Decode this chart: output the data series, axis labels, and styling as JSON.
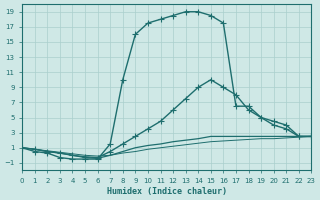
{
  "xlabel": "Humidex (Indice chaleur)",
  "xlim": [
    0,
    23
  ],
  "ylim": [
    -2,
    20
  ],
  "xticks": [
    0,
    1,
    2,
    3,
    4,
    5,
    6,
    7,
    8,
    9,
    10,
    11,
    12,
    13,
    14,
    15,
    16,
    17,
    18,
    19,
    20,
    21,
    22,
    23
  ],
  "yticks": [
    -1,
    1,
    3,
    5,
    7,
    9,
    11,
    13,
    15,
    17,
    19
  ],
  "bg_color": "#cfe8e6",
  "grid_color": "#aacfcd",
  "line_color": "#1e6e6e",
  "curve1_x": [
    0,
    1,
    2,
    3,
    4,
    5,
    6,
    7,
    8,
    9,
    10,
    11,
    12,
    13,
    14,
    15,
    16,
    17,
    18,
    19,
    20,
    21,
    22,
    23
  ],
  "curve1_y": [
    1,
    0.5,
    0.3,
    -0.3,
    -0.5,
    -0.5,
    -0.5,
    1.5,
    10,
    16,
    17.5,
    18,
    18.5,
    19,
    19,
    18.5,
    17.5,
    6.5,
    6.5,
    5,
    4.5,
    4,
    2.5,
    2.5
  ],
  "curve2_x": [
    0,
    1,
    2,
    3,
    4,
    5,
    6,
    7,
    8,
    9,
    10,
    11,
    12,
    13,
    14,
    15,
    16,
    17,
    18,
    19,
    20,
    21,
    22,
    23
  ],
  "curve2_y": [
    1,
    0.8,
    0.5,
    0.3,
    0.0,
    -0.2,
    -0.3,
    0.5,
    1.5,
    2.5,
    3.5,
    4.5,
    6,
    7.5,
    9,
    10,
    9,
    8,
    6,
    5,
    4,
    3.5,
    2.5,
    2.5
  ],
  "curve3_x": [
    0,
    1,
    2,
    3,
    4,
    5,
    6,
    7,
    8,
    9,
    10,
    11,
    12,
    13,
    14,
    15,
    16,
    17,
    18,
    19,
    20,
    21,
    22,
    23
  ],
  "curve3_y": [
    1,
    0.8,
    0.5,
    0.3,
    0.0,
    -0.3,
    -0.4,
    0.0,
    0.5,
    1.0,
    1.3,
    1.5,
    1.8,
    2.0,
    2.2,
    2.5,
    2.5,
    2.5,
    2.5,
    2.5,
    2.5,
    2.5,
    2.5,
    2.5
  ],
  "curve4_x": [
    0,
    1,
    2,
    3,
    4,
    5,
    6,
    7,
    8,
    9,
    10,
    11,
    12,
    13,
    14,
    15,
    16,
    17,
    18,
    19,
    20,
    21,
    22,
    23
  ],
  "curve4_y": [
    1,
    0.8,
    0.6,
    0.4,
    0.2,
    0.0,
    -0.1,
    0.0,
    0.3,
    0.5,
    0.8,
    1.0,
    1.2,
    1.4,
    1.6,
    1.8,
    1.9,
    2.0,
    2.1,
    2.2,
    2.2,
    2.3,
    2.4,
    2.5
  ]
}
